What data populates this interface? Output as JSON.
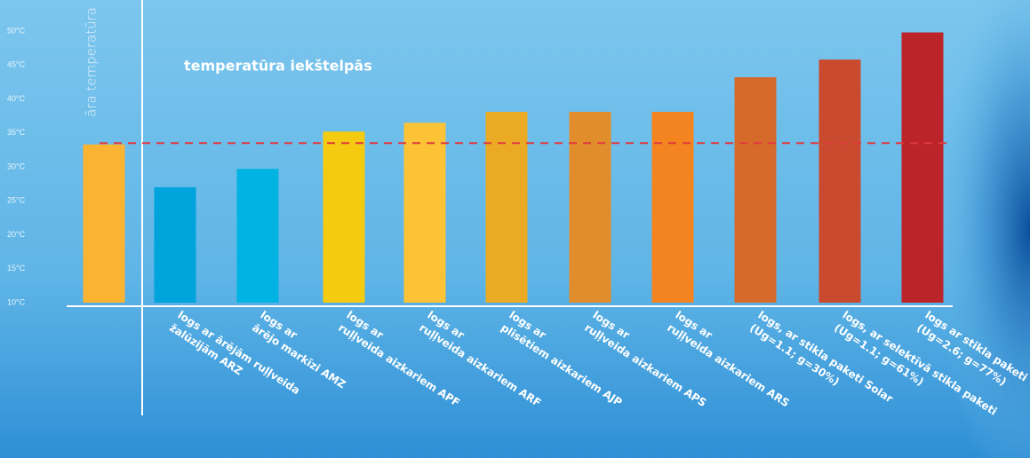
{
  "chart_data": {
    "type": "bar",
    "annotation": "temperatūra iekštelpās",
    "reference_line": 33.5,
    "categories": [
      [
        "āra temperatūra"
      ],
      [
        "logs ar ārējām ruļļveida",
        "žalūzijām ARZ"
      ],
      [
        "logs ar",
        "ārējo markīzi AMZ"
      ],
      [
        "logs ar",
        "ruļļveida aizkariem APF"
      ],
      [
        "logs ar",
        "ruļļveida aizkariem ARF"
      ],
      [
        "logs ar",
        "plisētiem aizkariem AJP"
      ],
      [
        "logs ar",
        "ruļļveida aizkariem APS"
      ],
      [
        "logs ar",
        "ruļļveida aizkariem ARS"
      ],
      [
        "logs, ar  stikla paketi Solar",
        "(Ug=1.1; g=30%)"
      ],
      [
        "logs, ar selektīvā stikla paketi",
        "(Ug=1.1; g=61%)"
      ],
      [
        "logs ar stikla paketi",
        "(Ug=2.6; g=77%)"
      ]
    ],
    "values": [
      33.3,
      27.0,
      29.7,
      35.2,
      36.5,
      38.1,
      38.1,
      38.1,
      43.2,
      45.8,
      49.8
    ],
    "colors": [
      "#fbb431",
      "#00a4dc",
      "#00b3e3",
      "#f5cb12",
      "#fdc336",
      "#ebaa24",
      "#e28d2c",
      "#f3841f",
      "#d56a2a",
      "#c94a2e",
      "#bb2529"
    ],
    "ylim": [
      10,
      50
    ],
    "yticks": [
      {
        "value": 10,
        "label": "10°C"
      },
      {
        "value": 15,
        "label": "15°C"
      },
      {
        "value": 20,
        "label": "20°C"
      },
      {
        "value": 25,
        "label": "25°C"
      },
      {
        "value": 30,
        "label": "30°C"
      },
      {
        "value": 35,
        "label": "35°C"
      },
      {
        "value": 40,
        "label": "40°C"
      },
      {
        "value": 45,
        "label": "45°C"
      },
      {
        "value": 50,
        "label": "50°C"
      }
    ]
  }
}
